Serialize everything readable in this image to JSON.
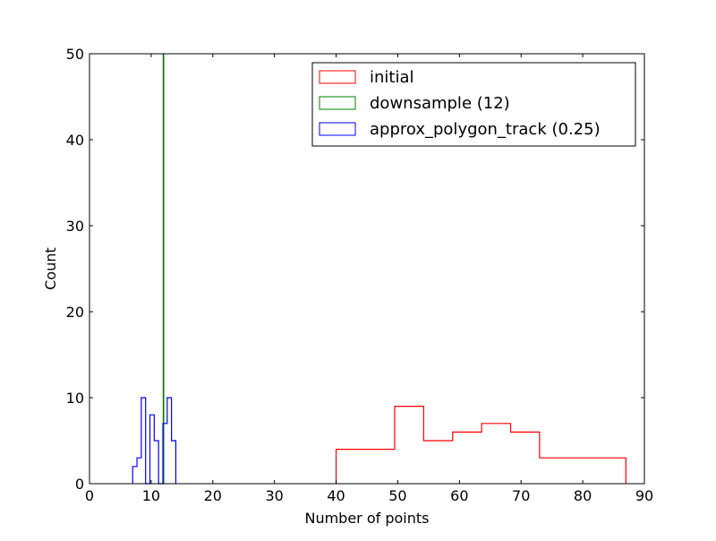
{
  "chart_data": {
    "type": "step-histogram",
    "xlabel": "Number of points",
    "ylabel": "Count",
    "xlim": [
      0,
      90
    ],
    "ylim": [
      0,
      50
    ],
    "xticks": [
      0,
      10,
      20,
      30,
      40,
      50,
      60,
      70,
      80,
      90
    ],
    "yticks": [
      0,
      10,
      20,
      30,
      40,
      50
    ],
    "legend_position": "top-right",
    "series": [
      {
        "name": "initial",
        "color": "#ff0000",
        "edges": [
          40,
          49.5,
          54.2,
          58.9,
          63.6,
          68.3,
          73,
          87
        ],
        "counts": [
          4,
          9,
          5,
          6,
          7,
          6,
          3
        ]
      },
      {
        "name": "downsample (12)",
        "color": "#008000",
        "edges": [
          11.95,
          12.05
        ],
        "counts": [
          50
        ]
      },
      {
        "name": "approx_polygon_track (0.25)",
        "color": "#0000ff",
        "edges": [
          7,
          7.7,
          8.4,
          9.1,
          9.8,
          10.5,
          11.2,
          11.9,
          12.6,
          13.3,
          14.0
        ],
        "counts": [
          2,
          3,
          10,
          0,
          8,
          5,
          0,
          7,
          10,
          5
        ]
      }
    ]
  }
}
